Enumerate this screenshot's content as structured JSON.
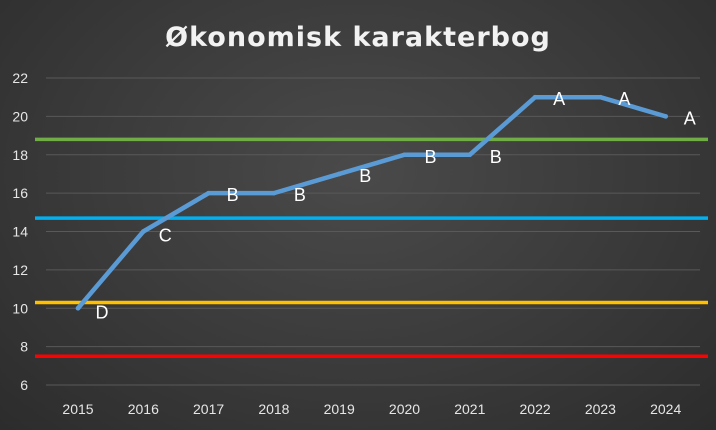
{
  "chart_data": {
    "type": "line",
    "title": "Økonomisk karakterbog",
    "x": [
      "2015",
      "2016",
      "2017",
      "2018",
      "2019",
      "2020",
      "2021",
      "2022",
      "2023",
      "2024"
    ],
    "series": [
      {
        "values": [
          10,
          14,
          16,
          16,
          17,
          18,
          18,
          21,
          21,
          20
        ],
        "labels": [
          "D",
          "C",
          "B",
          "B",
          "B",
          "B",
          "B",
          "A",
          "A",
          "A"
        ],
        "color": "#5b9bd5"
      }
    ],
    "reference_lines": [
      {
        "y": 18.8,
        "color": "#70ad47"
      },
      {
        "y": 14.7,
        "color": "#00b0f0"
      },
      {
        "y": 10.3,
        "color": "#ffc000"
      },
      {
        "y": 7.5,
        "color": "#ff0000"
      }
    ],
    "ylim": [
      6,
      22
    ],
    "yticks": [
      6,
      8,
      10,
      12,
      14,
      16,
      18,
      20,
      22
    ],
    "grid": true,
    "legend": "none",
    "background": "#3d3d3d",
    "gridline_color": "#595959",
    "text_color": "#e6e6e6"
  }
}
